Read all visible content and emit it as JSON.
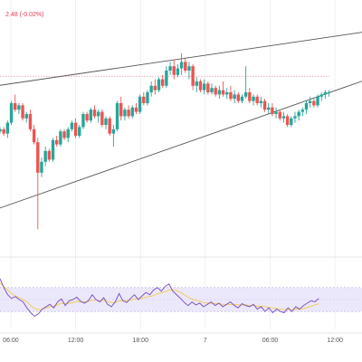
{
  "legend": {
    "change_text": "2.48 (-0.02%)"
  },
  "chart_data": {
    "type": "candlestick",
    "x_ticks": [
      {
        "label": "06:00",
        "t": 1
      },
      {
        "label": "12:00",
        "t": 7
      },
      {
        "label": "18:00",
        "t": 13
      },
      {
        "label": "7",
        "t": 19
      },
      {
        "label": "06:00",
        "t": 25
      },
      {
        "label": "12:00",
        "t": 31
      }
    ],
    "x_range": [
      0,
      33.5
    ],
    "y_range": [
      0,
      100
    ],
    "price_line": {
      "y": 72.4,
      "t_end": 30.5
    },
    "candles": [
      [
        0.0,
        47,
        49,
        46,
        48
      ],
      [
        0.35,
        48,
        49,
        45,
        46
      ],
      [
        0.7,
        46,
        52,
        44,
        51
      ],
      [
        1.05,
        51,
        61,
        50,
        60
      ],
      [
        1.4,
        60,
        64,
        56,
        57
      ],
      [
        1.75,
        57,
        60,
        55,
        59
      ],
      [
        2.1,
        59,
        60,
        52,
        53
      ],
      [
        2.45,
        53,
        56,
        51,
        55
      ],
      [
        2.8,
        55,
        57,
        47,
        48
      ],
      [
        3.15,
        48,
        50,
        41,
        42
      ],
      [
        3.5,
        42,
        44,
        2,
        28
      ],
      [
        3.85,
        28,
        35,
        26,
        33
      ],
      [
        4.2,
        33,
        40,
        31,
        38
      ],
      [
        4.55,
        38,
        39,
        33,
        34
      ],
      [
        4.9,
        34,
        44,
        33,
        43
      ],
      [
        5.25,
        43,
        45,
        40,
        41
      ],
      [
        5.6,
        41,
        48,
        40,
        47
      ],
      [
        5.95,
        47,
        48,
        43,
        44
      ],
      [
        6.3,
        44,
        49,
        42,
        48
      ],
      [
        6.65,
        48,
        52,
        47,
        51
      ],
      [
        7.0,
        51,
        53,
        44,
        45
      ],
      [
        7.35,
        45,
        50,
        44,
        49
      ],
      [
        7.7,
        49,
        56,
        48,
        55
      ],
      [
        8.05,
        55,
        56,
        51,
        52
      ],
      [
        8.4,
        52,
        58,
        51,
        57
      ],
      [
        8.75,
        57,
        59,
        53,
        54
      ],
      [
        9.1,
        54,
        57,
        51,
        56
      ],
      [
        9.45,
        56,
        57,
        49,
        50
      ],
      [
        9.8,
        50,
        54,
        48,
        53
      ],
      [
        10.15,
        53,
        54,
        45,
        46
      ],
      [
        10.5,
        46,
        50,
        40,
        48
      ],
      [
        10.85,
        48,
        61,
        47,
        60
      ],
      [
        11.2,
        60,
        63,
        52,
        54
      ],
      [
        11.55,
        54,
        58,
        52,
        57
      ],
      [
        11.9,
        57,
        59,
        53,
        54
      ],
      [
        12.25,
        54,
        59,
        53,
        58
      ],
      [
        12.6,
        58,
        60,
        55,
        56
      ],
      [
        12.95,
        56,
        64,
        55,
        63
      ],
      [
        13.3,
        63,
        65,
        59,
        60
      ],
      [
        13.65,
        60,
        66,
        59,
        65
      ],
      [
        14.0,
        65,
        70,
        63,
        68
      ],
      [
        14.35,
        68,
        71,
        64,
        66
      ],
      [
        14.7,
        66,
        72,
        65,
        71
      ],
      [
        15.05,
        71,
        73,
        67,
        68
      ],
      [
        15.4,
        68,
        77,
        67,
        75
      ],
      [
        15.75,
        75,
        79,
        73,
        77
      ],
      [
        16.1,
        77,
        80,
        71,
        73
      ],
      [
        16.45,
        73,
        78,
        72,
        76
      ],
      [
        16.8,
        76,
        83,
        73,
        79
      ],
      [
        17.15,
        79,
        81,
        74,
        75
      ],
      [
        17.5,
        75,
        79,
        71,
        77
      ],
      [
        17.85,
        77,
        78,
        66,
        68
      ],
      [
        18.2,
        68,
        72,
        65,
        70
      ],
      [
        18.55,
        70,
        71,
        65,
        66
      ],
      [
        18.9,
        66,
        71,
        64,
        69
      ],
      [
        19.25,
        69,
        70,
        64,
        65
      ],
      [
        19.6,
        65,
        69,
        64,
        67
      ],
      [
        19.95,
        67,
        68,
        63,
        64
      ],
      [
        20.3,
        64,
        68,
        62,
        66
      ],
      [
        20.65,
        66,
        70,
        63,
        64
      ],
      [
        21.0,
        64,
        67,
        62,
        65
      ],
      [
        21.35,
        65,
        68,
        61,
        62
      ],
      [
        21.7,
        62,
        66,
        60,
        64
      ],
      [
        22.05,
        64,
        65,
        60,
        61
      ],
      [
        22.4,
        61,
        64,
        60,
        63
      ],
      [
        22.75,
        63,
        77,
        62,
        65
      ],
      [
        23.1,
        65,
        67,
        60,
        61
      ],
      [
        23.45,
        61,
        64,
        59,
        63
      ],
      [
        23.8,
        63,
        64,
        59,
        60
      ],
      [
        24.15,
        60,
        63,
        58,
        61
      ],
      [
        24.5,
        61,
        62,
        56,
        57
      ],
      [
        24.85,
        57,
        60,
        55,
        58
      ],
      [
        25.2,
        58,
        60,
        54,
        55
      ],
      [
        25.55,
        55,
        58,
        53,
        56
      ],
      [
        25.9,
        56,
        57,
        52,
        53
      ],
      [
        26.25,
        53,
        56,
        51,
        54
      ],
      [
        26.6,
        54,
        55,
        49,
        50
      ],
      [
        26.95,
        50,
        54,
        49,
        53
      ],
      [
        27.3,
        53,
        56,
        51,
        54
      ],
      [
        27.65,
        54,
        57,
        52,
        56
      ],
      [
        28.0,
        56,
        58,
        54,
        57
      ],
      [
        28.35,
        57,
        61,
        55,
        60
      ],
      [
        28.7,
        60,
        63,
        58,
        61
      ],
      [
        29.05,
        61,
        62,
        58,
        59
      ],
      [
        29.4,
        59,
        64,
        58,
        63
      ],
      [
        29.75,
        63,
        65,
        61,
        64
      ],
      [
        30.1,
        64,
        66,
        62,
        65
      ],
      [
        30.45,
        65,
        66,
        63,
        65
      ]
    ],
    "trendlines": [
      {
        "from": [
          -1,
          67.5
        ],
        "to": [
          34,
          93
        ]
      },
      {
        "from": [
          -1,
          10
        ],
        "to": [
          34,
          71
        ]
      }
    ],
    "oscillator": {
      "range": [
        0,
        100
      ],
      "band": [
        30,
        70
      ],
      "main": [
        85,
        70,
        58,
        52,
        55,
        50,
        46,
        36,
        28,
        22,
        26,
        34,
        38,
        42,
        36,
        46,
        51,
        40,
        48,
        50,
        54,
        47,
        44,
        48,
        58,
        50,
        46,
        53,
        42,
        38,
        46,
        60,
        48,
        45,
        52,
        58,
        50,
        56,
        62,
        58,
        66,
        70,
        64,
        72,
        76,
        64,
        58,
        52,
        45,
        40,
        46,
        41,
        44,
        38,
        42,
        46,
        40,
        44,
        38,
        42,
        46,
        40,
        36,
        43,
        40,
        38,
        42,
        34,
        38,
        30,
        36,
        28,
        34,
        30,
        28,
        36,
        30,
        38,
        34,
        40,
        44,
        48,
        46,
        52
      ],
      "signal": [
        78,
        72,
        66,
        60,
        56,
        53,
        50,
        46,
        40,
        35,
        33,
        34,
        36,
        38,
        39,
        41,
        44,
        43,
        44,
        45,
        47,
        46,
        46,
        47,
        49,
        49,
        48,
        49,
        47,
        45,
        45,
        48,
        48,
        48,
        49,
        51,
        51,
        52,
        54,
        55,
        57,
        60,
        61,
        63,
        66,
        66,
        65,
        62,
        58,
        54,
        51,
        49,
        47,
        45,
        44,
        44,
        43,
        43,
        42,
        42,
        42,
        42,
        41,
        41,
        41,
        40,
        40,
        39,
        39,
        38,
        37,
        36,
        35,
        34,
        33,
        34,
        33,
        34,
        34,
        35,
        37,
        39,
        41,
        43
      ]
    }
  }
}
